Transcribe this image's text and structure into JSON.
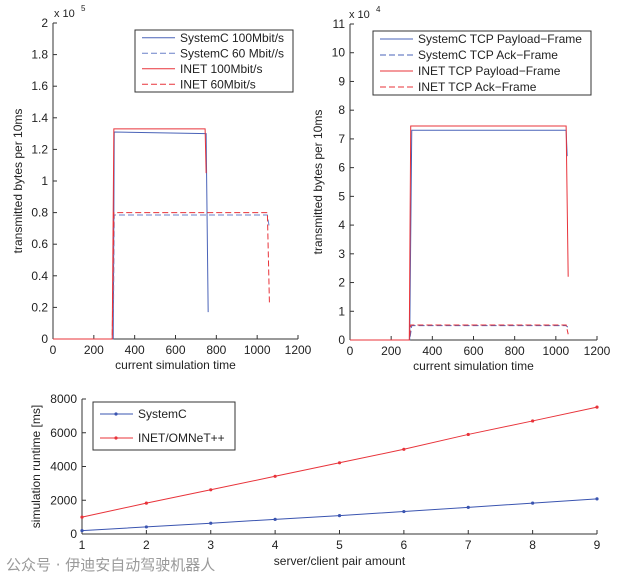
{
  "chart_data": [
    {
      "type": "line",
      "xlabel": "current simulation time",
      "ylabel": "transmitted bytes per 10ms",
      "y_exponent_label": "x 10",
      "y_exponent": "5",
      "xlim": [
        0,
        1200
      ],
      "ylim": [
        0,
        200000
      ],
      "xticks": [
        "0",
        "200",
        "400",
        "600",
        "800",
        "1000",
        "1200"
      ],
      "yticks": [
        "0",
        "0.2",
        "0.4",
        "0.6",
        "0.8",
        "1",
        "1.2",
        "1.4",
        "1.6",
        "1.8",
        "2"
      ],
      "ytick_values": [
        0,
        20000,
        40000,
        60000,
        80000,
        100000,
        120000,
        140000,
        160000,
        180000,
        200000
      ],
      "grid": false,
      "legend_position": "top-right",
      "series": [
        {
          "name": "SystemC 100Mbit/s",
          "color": "#4a63b8",
          "dash": "solid",
          "x": [
            0,
            295,
            300,
            750,
            760
          ],
          "y": [
            0,
            0,
            131000,
            130000,
            17000
          ]
        },
        {
          "name": "SystemC 60 Mbit//s",
          "color": "#6a80c8",
          "dash": "dashed",
          "x": [
            0,
            295,
            300,
            1050,
            1060
          ],
          "y": [
            0,
            0,
            78500,
            78500,
            70000
          ]
        },
        {
          "name": "INET 100Mbit/s",
          "color": "#e8333a",
          "dash": "solid",
          "x": [
            0,
            290,
            298,
            745,
            750
          ],
          "y": [
            0,
            0,
            133000,
            133000,
            105000
          ]
        },
        {
          "name": "INET 60Mbit/s",
          "color": "#e8333a",
          "dash": "dashed",
          "x": [
            0,
            290,
            298,
            1050,
            1060
          ],
          "y": [
            0,
            0,
            80000,
            80000,
            23000
          ]
        }
      ]
    },
    {
      "type": "line",
      "xlabel": "current simulation time",
      "ylabel": "transmitted bytes per 10ms",
      "y_exponent_label": "x 10",
      "y_exponent": "4",
      "xlim": [
        0,
        1200
      ],
      "ylim": [
        0,
        110000
      ],
      "xticks": [
        "0",
        "200",
        "400",
        "600",
        "800",
        "1000",
        "1200"
      ],
      "yticks": [
        "0",
        "1",
        "2",
        "3",
        "4",
        "5",
        "6",
        "7",
        "8",
        "9",
        "10",
        "11"
      ],
      "ytick_values": [
        0,
        10000,
        20000,
        30000,
        40000,
        50000,
        60000,
        70000,
        80000,
        90000,
        100000,
        110000
      ],
      "grid": false,
      "legend_position": "top-right",
      "series": [
        {
          "name": "SystemC TCP Payload−Frame",
          "color": "#4a63b8",
          "dash": "solid",
          "x": [
            0,
            290,
            300,
            1050,
            1055
          ],
          "y": [
            0,
            0,
            73000,
            73000,
            64000
          ]
        },
        {
          "name": "SystemC TCP Ack−Frame",
          "color": "#4a63b8",
          "dash": "dashed",
          "x": [
            0,
            290,
            300,
            1050,
            1058
          ],
          "y": [
            0,
            0,
            5000,
            5000,
            4500
          ]
        },
        {
          "name": "INET TCP Payload−Frame",
          "color": "#e8333a",
          "dash": "solid",
          "x": [
            0,
            288,
            295,
            1050,
            1060
          ],
          "y": [
            0,
            0,
            74500,
            74500,
            22000
          ]
        },
        {
          "name": "INET TCP Ack−Frame",
          "color": "#e8333a",
          "dash": "dashed",
          "x": [
            0,
            288,
            295,
            1050,
            1060
          ],
          "y": [
            0,
            0,
            5200,
            5200,
            2000
          ]
        }
      ]
    },
    {
      "type": "line",
      "xlabel": "server/client pair amount",
      "ylabel": "simulation runtime [ms]",
      "xlim": [
        1,
        9
      ],
      "ylim": [
        0,
        8000
      ],
      "xticks": [
        "1",
        "2",
        "3",
        "4",
        "5",
        "6",
        "7",
        "8",
        "9"
      ],
      "yticks": [
        "0",
        "2000",
        "4000",
        "6000",
        "8000"
      ],
      "ytick_values": [
        0,
        2000,
        4000,
        6000,
        8000
      ],
      "grid": false,
      "legend_position": "top-left",
      "series": [
        {
          "name": "SystemC",
          "color": "#3a54b0",
          "dash": "solid",
          "marker": "point",
          "x": [
            1,
            2,
            3,
            4,
            5,
            6,
            7,
            8,
            9
          ],
          "y": [
            200,
            420,
            640,
            870,
            1090,
            1330,
            1580,
            1830,
            2080
          ]
        },
        {
          "name": "INET/OMNeT++",
          "color": "#e8333a",
          "dash": "solid",
          "marker": "point",
          "x": [
            1,
            2,
            3,
            4,
            5,
            6,
            7,
            8,
            9
          ],
          "y": [
            1000,
            1830,
            2620,
            3420,
            4220,
            5020,
            5900,
            6700,
            7520
          ]
        }
      ]
    }
  ],
  "watermark": "公众号 · 伊迪安自动驾驶机器人"
}
